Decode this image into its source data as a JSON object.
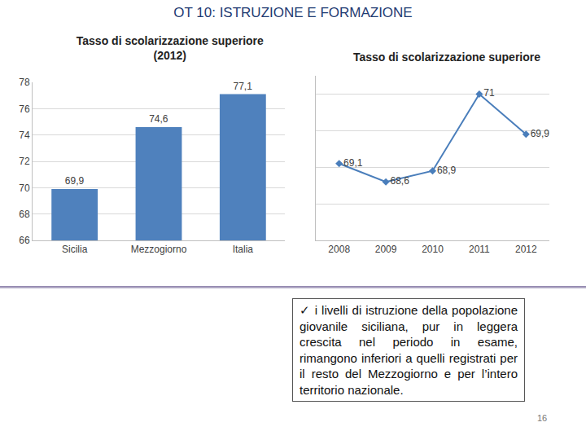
{
  "title": "OT 10: ISTRUZIONE E FORMAZIONE",
  "chart_data": [
    {
      "type": "bar",
      "title": "Tasso di scolarizzazione superiore\n(2012)",
      "categories": [
        "Sicilia",
        "Mezzogiorno",
        "Italia"
      ],
      "values": [
        69.9,
        74.6,
        77.1
      ],
      "value_labels": [
        "69,9",
        "74,6",
        "77,1"
      ],
      "color": "#4f81bd",
      "ylim": [
        66,
        78
      ],
      "yticks": [
        66,
        68,
        70,
        72,
        74,
        76,
        78
      ],
      "grid": true,
      "data_labels": true
    },
    {
      "type": "line",
      "title": "Tasso di scolarizzazione superiore",
      "categories": [
        "2008",
        "2009",
        "2010",
        "2011",
        "2012"
      ],
      "values": [
        69.1,
        68.6,
        68.9,
        71,
        69.9
      ],
      "value_labels": [
        "69,1",
        "68,6",
        "68,9",
        "71",
        "69,9"
      ],
      "color": "#4a7ebb",
      "marker": "diamond",
      "ylim": [
        67,
        71.5
      ],
      "yticks": [
        67,
        68,
        69,
        70,
        71
      ],
      "grid": true,
      "data_labels": true,
      "tick_labels": "x"
    }
  ],
  "note": "✓ i livelli di istruzione della popolazione giovanile siciliana, pur in leggera crescita nel periodo in esame, rimangono inferiori a quelli registrati per il resto del Mezzogiorno e per l’intero territorio nazionale.",
  "page": "16"
}
